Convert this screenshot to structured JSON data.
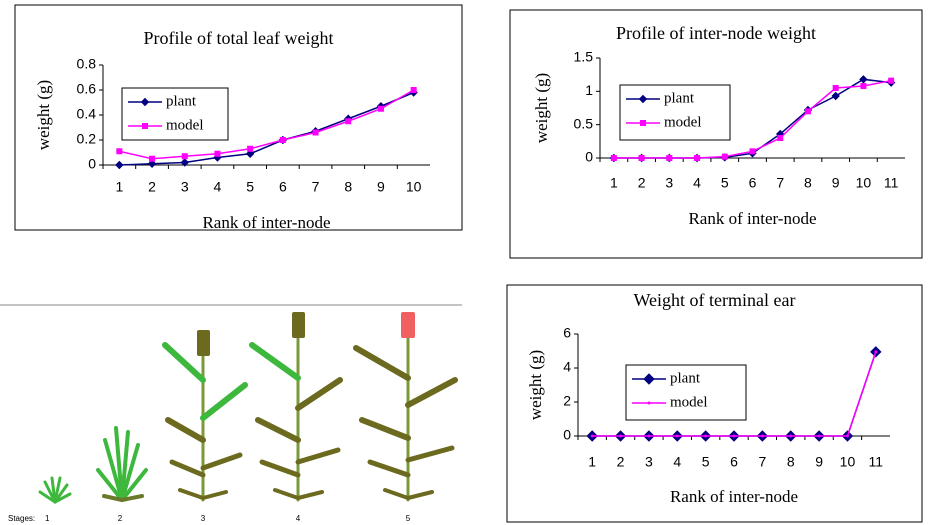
{
  "chart_data": [
    {
      "type": "line",
      "title": "Profile of total leaf weight",
      "x_label": "Rank of inter-node",
      "y_label": "weight (g)",
      "categories": [
        "1",
        "2",
        "3",
        "4",
        "5",
        "6",
        "7",
        "8",
        "9",
        "10"
      ],
      "series": [
        {
          "name": "plant",
          "color": "#000080",
          "marker": "diamond",
          "values": [
            0,
            0.01,
            0.02,
            0.06,
            0.09,
            0.2,
            0.27,
            0.37,
            0.47,
            0.58
          ]
        },
        {
          "name": "model",
          "color": "#ff00ff",
          "marker": "square",
          "values": [
            0.11,
            0.05,
            0.07,
            0.09,
            0.13,
            0.2,
            0.26,
            0.35,
            0.45,
            0.6
          ]
        }
      ],
      "ylim": [
        0,
        0.8
      ],
      "yticks": [
        0,
        0.2,
        0.4,
        0.6,
        0.8
      ]
    },
    {
      "type": "line",
      "title": "Profile of inter-node weight",
      "x_label": "Rank of inter-node",
      "y_label": "weight (g)",
      "categories": [
        "1",
        "2",
        "3",
        "4",
        "5",
        "6",
        "7",
        "8",
        "9",
        "10",
        "11"
      ],
      "series": [
        {
          "name": "plant",
          "color": "#000080",
          "marker": "diamond",
          "values": [
            0,
            0,
            0,
            0,
            0.01,
            0.07,
            0.36,
            0.72,
            0.93,
            1.18,
            1.13
          ]
        },
        {
          "name": "model",
          "color": "#ff00ff",
          "marker": "square",
          "values": [
            0,
            0,
            0,
            0,
            0.02,
            0.1,
            0.3,
            0.7,
            1.05,
            1.08,
            1.16
          ]
        }
      ],
      "ylim": [
        0,
        1.5
      ],
      "yticks": [
        0,
        0.5,
        1,
        1.5
      ]
    },
    {
      "type": "line",
      "title": "Weight of terminal ear",
      "x_label": "Rank of inter-node",
      "y_label": "weight (g)",
      "categories": [
        "1",
        "2",
        "3",
        "4",
        "5",
        "6",
        "7",
        "8",
        "9",
        "10",
        "11"
      ],
      "series": [
        {
          "name": "plant",
          "color": "#000080",
          "marker": "bigdiamond",
          "values": [
            0,
            0,
            0,
            0,
            0,
            0,
            0,
            0,
            0,
            0,
            4.95
          ]
        },
        {
          "name": "model",
          "color": "#ff00ff",
          "marker": "dot",
          "values": [
            0,
            0,
            0,
            0,
            0,
            0,
            0,
            0,
            0,
            0,
            4.95
          ]
        }
      ],
      "ylim": [
        0,
        6
      ],
      "yticks": [
        0,
        2,
        4,
        6
      ]
    }
  ],
  "illustration": {
    "stages_label": "Stages:",
    "stages": [
      "1",
      "2",
      "3",
      "4",
      "5"
    ]
  }
}
